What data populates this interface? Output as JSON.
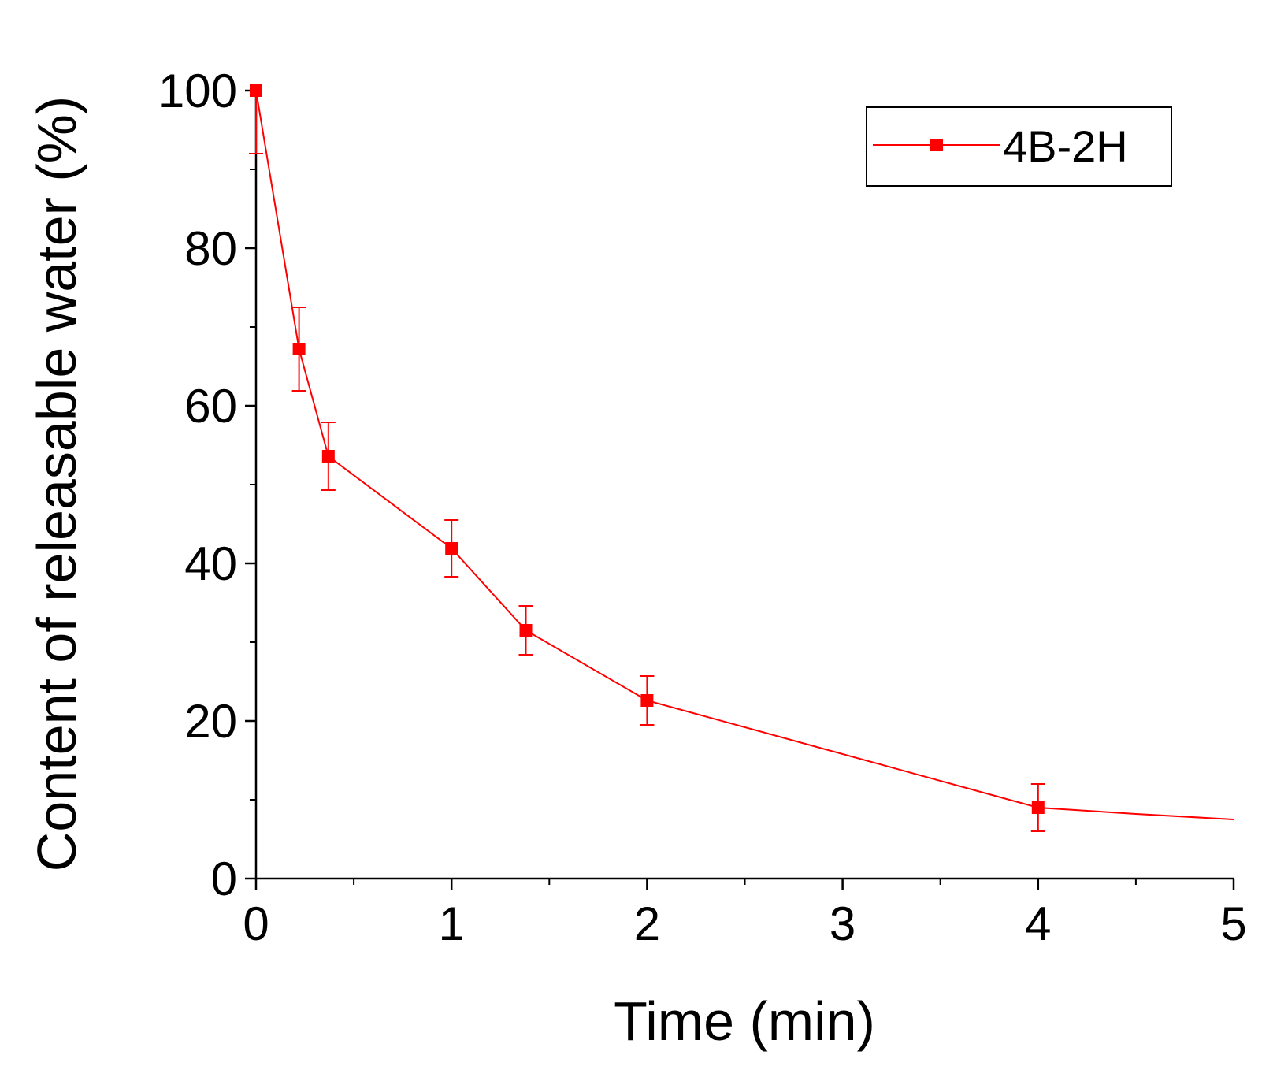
{
  "chart_data": {
    "type": "line",
    "title": "",
    "xlabel": "Time  (min)",
    "ylabel": "Content of releasable water  (%)",
    "xlim": [
      0,
      5
    ],
    "ylim": [
      0,
      100
    ],
    "xticks": [
      "0",
      "1",
      "2",
      "3",
      "4",
      "5"
    ],
    "yticks": [
      "0",
      "20",
      "40",
      "60",
      "80",
      "100"
    ],
    "grid": false,
    "legend_position": "top-right",
    "series": [
      {
        "name": "4B-2H",
        "color": "#ff0000",
        "marker": "square",
        "x": [
          0,
          0.22,
          0.37,
          1.0,
          1.38,
          2.0,
          4.0
        ],
        "y": [
          100,
          67.2,
          53.6,
          41.9,
          31.5,
          22.6,
          9.0
        ],
        "error": [
          8,
          5.3,
          4.3,
          3.6,
          3.1,
          3.1,
          3.0
        ]
      }
    ],
    "fit_curve": {
      "x": [
        4.0,
        4.5,
        5.0
      ],
      "y": [
        9.0,
        8.2,
        7.5
      ]
    }
  }
}
